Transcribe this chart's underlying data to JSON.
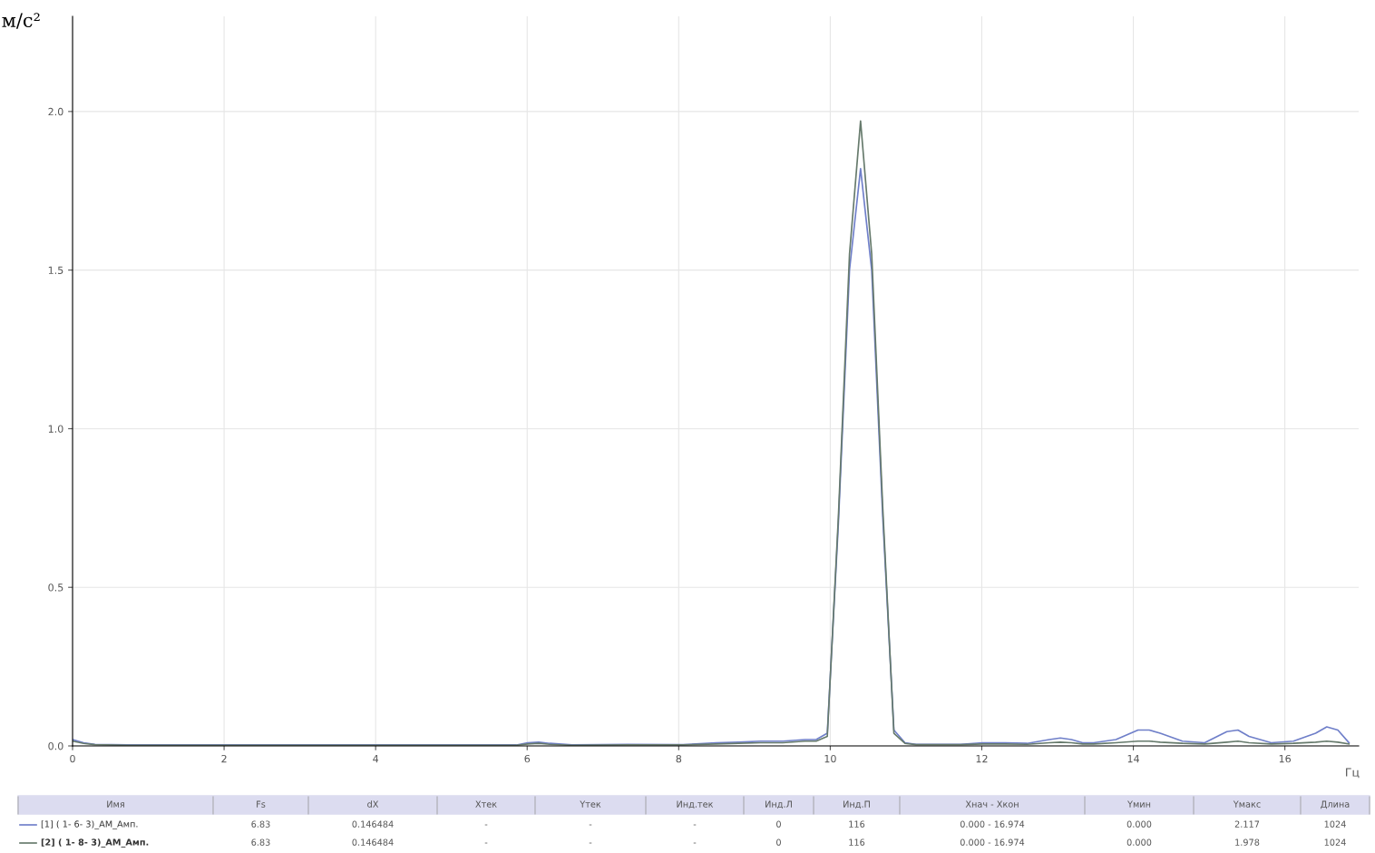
{
  "chart_data": {
    "type": "line",
    "xlabel": "Гц",
    "ylabel": "м/с²",
    "x": [
      0,
      0.146,
      0.293,
      0.732,
      1.465,
      2.93,
      4.395,
      5.859,
      6.006,
      6.152,
      6.299,
      6.592,
      7.324,
      8.057,
      8.496,
      8.789,
      9.082,
      9.375,
      9.668,
      9.814,
      9.961,
      10.107,
      10.254,
      10.4,
      10.547,
      10.693,
      10.84,
      10.986,
      11.133,
      11.426,
      11.719,
      12.012,
      12.305,
      12.598,
      12.891,
      13.037,
      13.184,
      13.33,
      13.477,
      13.77,
      14.062,
      14.209,
      14.355,
      14.648,
      14.941,
      15.234,
      15.381,
      15.527,
      15.82,
      16.113,
      16.406,
      16.553,
      16.699,
      16.846
    ],
    "series": [
      {
        "name": "[1] ( 1- 6- 3)_AM_Амп.",
        "color": "#6f7fc9",
        "values": [
          0.02,
          0.01,
          0.005,
          0.003,
          0.003,
          0.003,
          0.003,
          0.003,
          0.01,
          0.012,
          0.008,
          0.003,
          0.005,
          0.004,
          0.01,
          0.012,
          0.015,
          0.015,
          0.02,
          0.02,
          0.04,
          0.7,
          1.5,
          1.82,
          1.5,
          0.72,
          0.05,
          0.01,
          0.005,
          0.005,
          0.005,
          0.01,
          0.01,
          0.008,
          0.02,
          0.025,
          0.02,
          0.01,
          0.01,
          0.02,
          0.05,
          0.05,
          0.04,
          0.015,
          0.01,
          0.045,
          0.05,
          0.03,
          0.01,
          0.015,
          0.04,
          0.06,
          0.05,
          0.01
        ]
      },
      {
        "name": "[2] ( 1- 8- 3)_AM_Амп.",
        "color": "#667a6c",
        "values": [
          0.015,
          0.008,
          0.004,
          0.002,
          0.002,
          0.002,
          0.002,
          0.002,
          0.006,
          0.008,
          0.005,
          0.002,
          0.003,
          0.003,
          0.006,
          0.008,
          0.01,
          0.01,
          0.015,
          0.015,
          0.03,
          0.72,
          1.55,
          1.97,
          1.55,
          0.75,
          0.04,
          0.008,
          0.004,
          0.004,
          0.004,
          0.006,
          0.006,
          0.005,
          0.01,
          0.012,
          0.01,
          0.006,
          0.006,
          0.01,
          0.015,
          0.015,
          0.012,
          0.008,
          0.006,
          0.012,
          0.015,
          0.01,
          0.006,
          0.008,
          0.012,
          0.015,
          0.012,
          0.006
        ]
      }
    ],
    "xlim": [
      0,
      16.974
    ],
    "ylim": [
      0,
      2.3
    ],
    "xticks": [
      0,
      2,
      4,
      6,
      8,
      10,
      12,
      14,
      16
    ],
    "yticks": [
      {
        "value": 0,
        "label": "0.0"
      },
      {
        "value": 0.5,
        "label": "0.5"
      },
      {
        "value": 1,
        "label": "1.0"
      },
      {
        "value": 1.5,
        "label": "1.5"
      },
      {
        "value": 2,
        "label": "2.0"
      }
    ],
    "grid": true,
    "legend": "bottom",
    "marker": "none",
    "line_style": "solid",
    "annotations": [
      "Имя",
      "Fs",
      "dX",
      "Xтек",
      "Yтек",
      "Инд.тек",
      "Инд.Л",
      "Инд.П",
      "Xнач - Xкон",
      "Yмин",
      "Yмакс",
      "Длина",
      "6.83",
      "0.146484",
      "-",
      "-",
      "-",
      "0",
      "116",
      "0.000 - 16.974",
      "0.000",
      "2.117",
      "1024",
      "6.83",
      "0.146484",
      "-",
      "-",
      "-",
      "0",
      "116",
      "0.000 - 16.974",
      "0.000",
      "1.978",
      "1024"
    ]
  }
}
